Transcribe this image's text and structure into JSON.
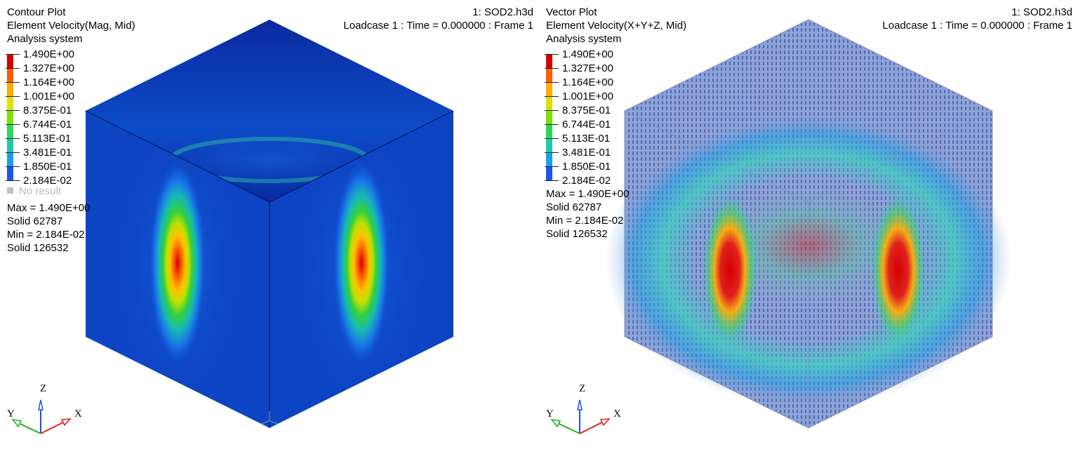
{
  "panels": [
    {
      "plot_type": "Contour Plot",
      "result_label": "Element Velocity(Mag, Mid)",
      "system_label": "Analysis system",
      "model": "1: SOD2.h3d",
      "loadcase": "Loadcase 1 : Time = 0.000000 : Frame 1",
      "legend_values": [
        "1.490E+00",
        "1.327E+00",
        "1.164E+00",
        "1.001E+00",
        "8.375E-01",
        "6.744E-01",
        "5.113E-01",
        "3.481E-01",
        "1.850E-01",
        "2.184E-02"
      ],
      "no_result_label": "No result",
      "max_label": "Max = 1.490E+00",
      "max_entity": "Solid 62787",
      "min_label": "Min = 2.184E-02",
      "min_entity": "Solid 126532",
      "triad": {
        "x": "X",
        "y": "Y",
        "z": "Z"
      }
    },
    {
      "plot_type": "Vector Plot",
      "result_label": "Element Velocity(X+Y+Z, Mid)",
      "system_label": "Analysis system",
      "model": "1: SOD2.h3d",
      "loadcase": "Loadcase 1 : Time = 0.000000 : Frame 1",
      "legend_values": [
        "1.490E+00",
        "1.327E+00",
        "1.164E+00",
        "1.001E+00",
        "8.375E-01",
        "6.744E-01",
        "5.113E-01",
        "3.481E-01",
        "1.850E-01",
        "2.184E-02"
      ],
      "max_label": "Max = 1.490E+00",
      "max_entity": "Solid 62787",
      "min_label": "Min = 2.184E-02",
      "min_entity": "Solid 126532",
      "triad": {
        "x": "X",
        "y": "Y",
        "z": "Z"
      }
    }
  ],
  "legend_colors": [
    "#d40000",
    "#ff5a00",
    "#ffae00",
    "#dde000",
    "#7ce000",
    "#2ed65a",
    "#1ecaa8",
    "#1aa0e6",
    "#1a55f0",
    "#0a0ab4"
  ],
  "colors": {
    "cube_base": "#0d3fbf",
    "cube_dark": "#06208a",
    "vector_fill": "#8aa0d2",
    "vector_edge": "#7c8fc8",
    "triad_x": "#e02020",
    "triad_y": "#20b020",
    "triad_z": "#2050e0"
  }
}
